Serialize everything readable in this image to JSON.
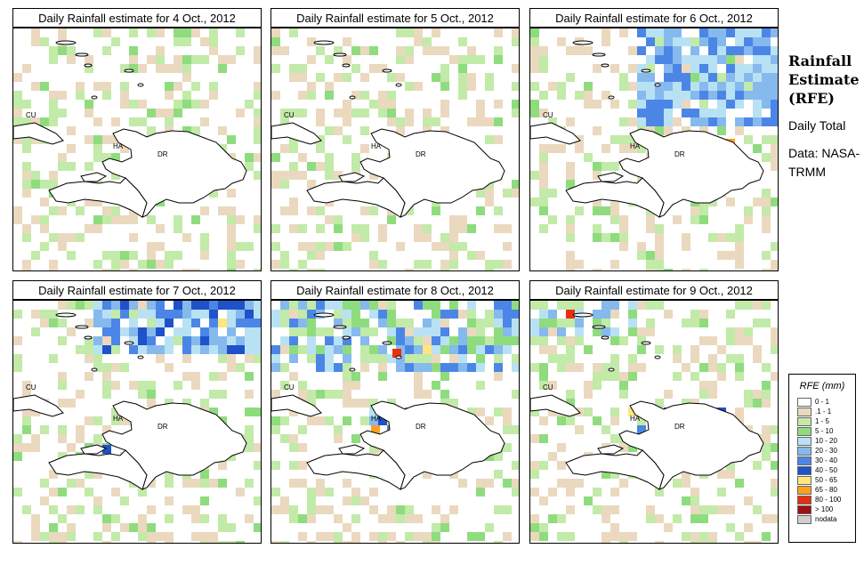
{
  "sidebar": {
    "title": "Rainfall Estimate (RFE)",
    "period": "Daily Total",
    "source": "Data: NASA-TRMM"
  },
  "legend": {
    "title": "RFE (mm)",
    "items": [
      {
        "label": "0 - 1",
        "color": "#ffffff"
      },
      {
        "label": ".1 - 1",
        "color": "#ead9bf"
      },
      {
        "label": "1 - 5",
        "color": "#c2eaa8"
      },
      {
        "label": "5 - 10",
        "color": "#8fdc7e"
      },
      {
        "label": "10 - 20",
        "color": "#b8e2f4"
      },
      {
        "label": "20 - 30",
        "color": "#86b9ee"
      },
      {
        "label": "30 - 40",
        "color": "#4b86e6"
      },
      {
        "label": "40 - 50",
        "color": "#1f52c8"
      },
      {
        "label": "50 - 65",
        "color": "#ffe680"
      },
      {
        "label": "65 - 80",
        "color": "#ffa020"
      },
      {
        "label": "80 - 100",
        "color": "#e83010"
      },
      {
        "label": "> 100",
        "color": "#a01010"
      },
      {
        "label": "nodata",
        "color": "#cfcfcf"
      }
    ]
  },
  "map_labels": {
    "cu": "CU",
    "ha": "HA",
    "dr": "DR"
  },
  "panels": [
    {
      "title": "Daily Rainfall estimate for  4 Oct., 2012"
    },
    {
      "title": "Daily Rainfall estimate for  5 Oct., 2012"
    },
    {
      "title": "Daily Rainfall estimate for  6 Oct., 2012"
    },
    {
      "title": "Daily Rainfall estimate for  7 Oct., 2012"
    },
    {
      "title": "Daily Rainfall estimate for  8 Oct., 2012"
    },
    {
      "title": "Daily Rainfall estimate for  9 Oct., 2012"
    }
  ]
}
